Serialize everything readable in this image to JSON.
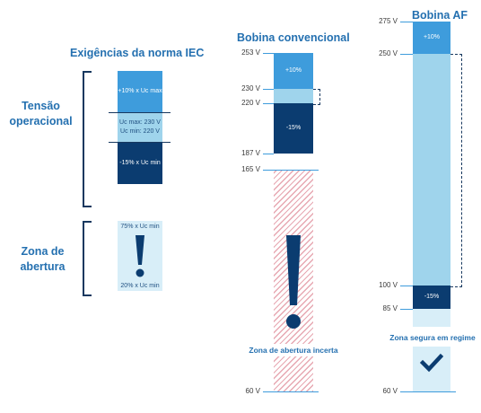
{
  "iec": {
    "title": "Exigências da norma IEC",
    "operational_label": "Tensão operacional",
    "block_top": "+10% x Uc max",
    "block_mid_1": "Uc max: 230 V",
    "block_mid_2": "Uc min: 220 V",
    "block_bottom": "-15% x Uc min",
    "opening_label": "Zona de abertura",
    "opening_top": "75% x Uc min",
    "opening_bottom": "20% x Uc min",
    "icon": "exclamation-icon"
  },
  "conventional": {
    "title": "Bobina convencional",
    "ticks": [
      "253 V",
      "230 V",
      "220 V",
      "187 V",
      "165 V",
      "60 V"
    ],
    "block_top": "+10%",
    "block_bottom": "-15%",
    "caption": "Zona de abertura incerta",
    "icon": "exclamation-icon"
  },
  "af": {
    "title": "Bobina AF",
    "ticks": [
      "275 V",
      "250 V",
      "100 V",
      "85 V",
      "60 V"
    ],
    "block_top": "+10%",
    "block_bottom": "-15%",
    "caption": "Zona segura em regime",
    "icon": "checkmark-icon"
  },
  "colors": {
    "title_blue": "#2470b0",
    "navy": "#0b3c70",
    "mid_blue": "#3e9cdc",
    "light_blue": "#9fd4ec",
    "pale_blue": "#d8eef8",
    "hatch_red": "#e7a8b2"
  }
}
